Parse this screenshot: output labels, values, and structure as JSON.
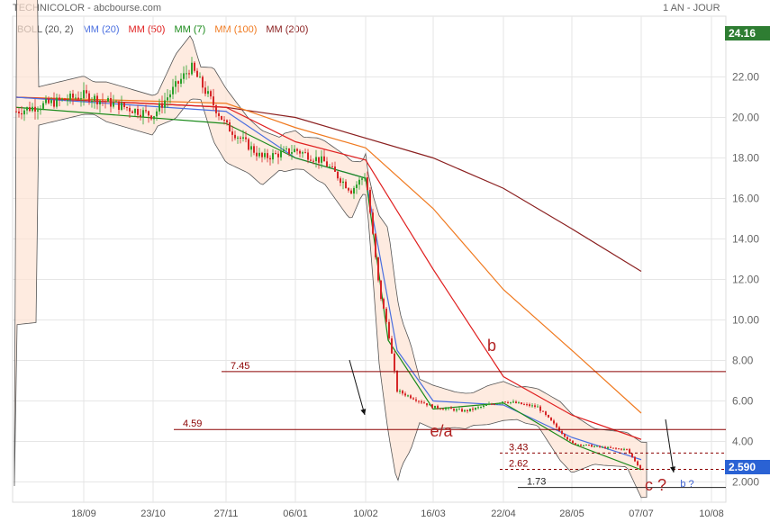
{
  "header": {
    "title": "TECHNICOLOR - abcbourse.com",
    "period": "1 AN - JOUR"
  },
  "legend": [
    {
      "label": "BOLL (20, 2)",
      "color": "#555555"
    },
    {
      "label": "MM (20)",
      "color": "#4a6fe0"
    },
    {
      "label": "MM (50)",
      "color": "#e02020"
    },
    {
      "label": "MM (7)",
      "color": "#1a8a1a"
    },
    {
      "label": "MM (100)",
      "color": "#f07a20"
    },
    {
      "label": "MM (200)",
      "color": "#8b2020"
    }
  ],
  "badges": {
    "max_price": {
      "label": "24.16",
      "color": "#2e7d32"
    },
    "last_price": {
      "label": "2.590",
      "color": "#2a62d4"
    }
  },
  "chart_data": {
    "type": "candlestick",
    "ylim": [
      1.0,
      25.0
    ],
    "y_ticks": [
      "22.00",
      "20.00",
      "18.00",
      "16.00",
      "14.00",
      "12.00",
      "10.00",
      "8.00",
      "6.00",
      "4.00",
      "2.000"
    ],
    "x_ticks": [
      "18/09",
      "23/10",
      "27/11",
      "06/01",
      "10/02",
      "16/03",
      "22/04",
      "28/05",
      "07/07",
      "10/08"
    ],
    "grid": true,
    "price_series": {
      "name": "TECHNICOLOR",
      "points": [
        [
          "08/08",
          20.3
        ],
        [
          "18/09",
          21.1
        ],
        [
          "23/10",
          20.1
        ],
        [
          "06/11",
          22.5
        ],
        [
          "27/11",
          19.6
        ],
        [
          "18/12",
          18.0
        ],
        [
          "06/01",
          18.4
        ],
        [
          "20/01",
          17.8
        ],
        [
          "05/02",
          16.4
        ],
        [
          "10/02",
          17.2
        ],
        [
          "18/02",
          11.5
        ],
        [
          "24/02",
          9.5
        ],
        [
          "01/03",
          6.5
        ],
        [
          "16/03",
          5.7
        ],
        [
          "01/04",
          5.5
        ],
        [
          "22/04",
          6.0
        ],
        [
          "10/05",
          5.7
        ],
        [
          "28/05",
          3.9
        ],
        [
          "14/06",
          3.7
        ],
        [
          "28/06",
          3.6
        ],
        [
          "07/07",
          2.6
        ]
      ]
    },
    "moving_averages": [
      {
        "name": "MM (200)",
        "points": [
          [
            "08/08",
            21.0
          ],
          [
            "27/11",
            20.5
          ],
          [
            "06/01",
            20.0
          ],
          [
            "16/03",
            18.0
          ],
          [
            "22/04",
            16.5
          ],
          [
            "28/05",
            14.5
          ],
          [
            "07/07",
            12.4
          ]
        ]
      },
      {
        "name": "MM (100)",
        "points": [
          [
            "08/08",
            21.0
          ],
          [
            "27/11",
            20.7
          ],
          [
            "06/01",
            19.5
          ],
          [
            "10/02",
            18.5
          ],
          [
            "16/03",
            15.5
          ],
          [
            "22/04",
            11.5
          ],
          [
            "28/05",
            8.5
          ],
          [
            "07/07",
            5.4
          ]
        ]
      },
      {
        "name": "MM (50)",
        "points": [
          [
            "08/08",
            21.0
          ],
          [
            "27/11",
            20.5
          ],
          [
            "06/01",
            18.8
          ],
          [
            "10/02",
            17.9
          ],
          [
            "16/03",
            12.5
          ],
          [
            "22/04",
            7.2
          ],
          [
            "28/05",
            5.3
          ],
          [
            "07/07",
            4.1
          ]
        ]
      },
      {
        "name": "MM (20)",
        "points": [
          [
            "08/08",
            21.0
          ],
          [
            "27/11",
            20.3
          ],
          [
            "06/01",
            18.0
          ],
          [
            "10/02",
            17.0
          ],
          [
            "01/03",
            8.5
          ],
          [
            "16/03",
            6.0
          ],
          [
            "22/04",
            5.8
          ],
          [
            "28/05",
            4.2
          ],
          [
            "07/07",
            3.1
          ]
        ]
      },
      {
        "name": "MM (7)",
        "points": [
          [
            "08/08",
            20.5
          ],
          [
            "27/11",
            19.7
          ],
          [
            "06/01",
            18.0
          ],
          [
            "10/02",
            17.0
          ],
          [
            "24/02",
            9.0
          ],
          [
            "16/03",
            5.6
          ],
          [
            "22/04",
            5.9
          ],
          [
            "28/05",
            3.9
          ],
          [
            "07/07",
            2.6
          ]
        ]
      }
    ],
    "levels": [
      {
        "label": "7.45",
        "value": 7.45,
        "style": "solid"
      },
      {
        "label": "4.59",
        "value": 4.59,
        "style": "solid"
      },
      {
        "label": "3.43",
        "value": 3.43,
        "style": "dashed"
      },
      {
        "label": "2.62",
        "value": 2.62,
        "style": "dashed"
      },
      {
        "label": "1.73",
        "value": 1.73,
        "style": "solid"
      }
    ],
    "annotations": [
      {
        "text": "b",
        "x": "16/03",
        "y": 8.0
      },
      {
        "text": "e/a",
        "x": "16/03",
        "y": 4.0
      },
      {
        "text": "c ?",
        "x": "07/07",
        "y": 1.1
      },
      {
        "text": "b ?",
        "x": "07/07",
        "y": 1.2
      }
    ]
  }
}
